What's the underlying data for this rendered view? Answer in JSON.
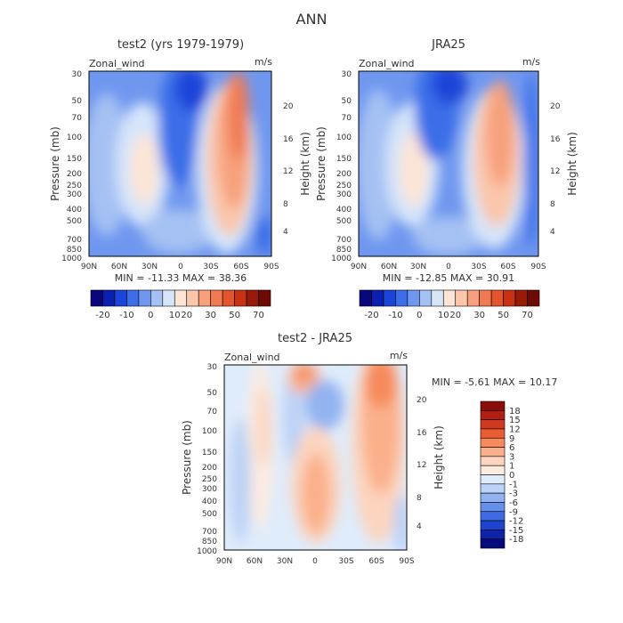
{
  "page_title": "ANN",
  "chart_data": [
    {
      "type": "heatmap",
      "title": "test2 (yrs 1979-1979)",
      "field_label": "Zonal_wind",
      "units": "m/s",
      "ylabel": "Pressure (mb)",
      "ylabel_right": "Height (km)",
      "x_ticks": [
        "90N",
        "60N",
        "30N",
        "0",
        "30S",
        "60S",
        "90S"
      ],
      "y_ticks": [
        "30",
        "50",
        "70",
        "100",
        "150",
        "200",
        "250",
        "300",
        "400",
        "500",
        "700",
        "850",
        "1000"
      ],
      "y_right_ticks": [
        "20",
        "16",
        "12",
        "8",
        "4"
      ],
      "stats": "MIN = -11.33   MAX = 38.36",
      "colorbar_labels": [
        "-20",
        "-10",
        "0",
        "10",
        "20",
        "30",
        "50",
        "70"
      ]
    },
    {
      "type": "heatmap",
      "title": "JRA25",
      "field_label": "Zonal_wind",
      "units": "m/s",
      "ylabel": "Pressure (mb)",
      "ylabel_right": "Height (km)",
      "x_ticks": [
        "90N",
        "60N",
        "30N",
        "0",
        "30S",
        "60S",
        "90S"
      ],
      "y_ticks": [
        "30",
        "50",
        "70",
        "100",
        "150",
        "200",
        "250",
        "300",
        "400",
        "500",
        "700",
        "850",
        "1000"
      ],
      "y_right_ticks": [
        "20",
        "16",
        "12",
        "8",
        "4"
      ],
      "stats": "MIN = -12.85   MAX = 30.91",
      "colorbar_labels": [
        "-20",
        "-10",
        "0",
        "10",
        "20",
        "30",
        "50",
        "70"
      ]
    },
    {
      "type": "heatmap",
      "title": "test2 - JRA25",
      "field_label": "Zonal_wind",
      "units": "m/s",
      "ylabel": "Pressure (mb)",
      "ylabel_right": "Height (km)",
      "x_ticks": [
        "90N",
        "60N",
        "30N",
        "0",
        "30S",
        "60S",
        "90S"
      ],
      "y_ticks": [
        "30",
        "50",
        "70",
        "100",
        "150",
        "200",
        "250",
        "300",
        "400",
        "500",
        "700",
        "850",
        "1000"
      ],
      "y_right_ticks": [
        "20",
        "16",
        "12",
        "8",
        "4"
      ],
      "stats": "MIN =   -5.61   MAX =   10.17",
      "colorbar_labels": [
        "18",
        "15",
        "12",
        "9",
        "6",
        "3",
        "1",
        "0",
        "-1",
        "-3",
        "-6",
        "-9",
        "-12",
        "-15",
        "-18"
      ]
    }
  ],
  "colors": {
    "main_scale": [
      "#08087a",
      "#0b1fb0",
      "#1a45d8",
      "#3b6ee8",
      "#6f97ef",
      "#a5c1f3",
      "#d6e5fa",
      "#fde5d6",
      "#fbc6aa",
      "#f7a07c",
      "#f07a52",
      "#e4552e",
      "#c83214",
      "#981b0a",
      "#6e0a04"
    ],
    "diff_scale": [
      "#8a0d0b",
      "#b01f12",
      "#cf3a1f",
      "#ea5c34",
      "#f78a5c",
      "#fab08a",
      "#fdd4be",
      "#fdebe0",
      "#dfecfb",
      "#bcd2f6",
      "#93b3f0",
      "#6690ea",
      "#3e6be2",
      "#1e44cf",
      "#0d23a8",
      "#060a7a"
    ]
  }
}
